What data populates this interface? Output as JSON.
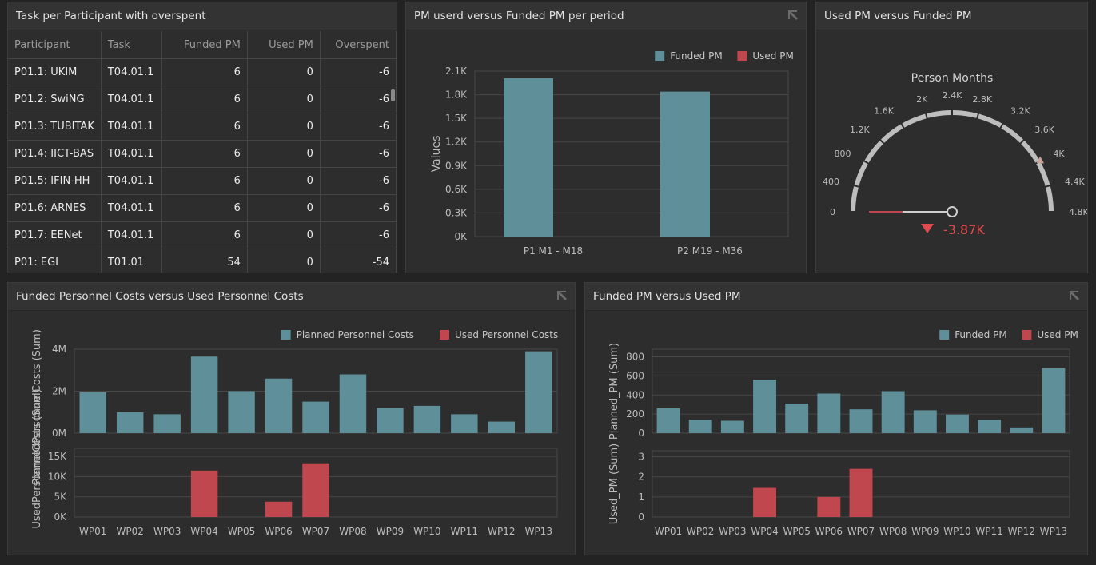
{
  "table_panel": {
    "title": "Task per Participant with overspent",
    "columns": [
      "Participant",
      "Task",
      "Funded PM",
      "Used PM",
      "Overspent"
    ],
    "rows": [
      [
        "P01.1: UKIM",
        "T04.01.1",
        "6",
        "0",
        "-6"
      ],
      [
        "P01.2: SwiNG",
        "T04.01.1",
        "6",
        "0",
        "-6"
      ],
      [
        "P01.3: TUBITAK",
        "T04.01.1",
        "6",
        "0",
        "-6"
      ],
      [
        "P01.4: IICT-BAS",
        "T04.01.1",
        "6",
        "0",
        "-6"
      ],
      [
        "P01.5: IFIN-HH",
        "T04.01.1",
        "6",
        "0",
        "-6"
      ],
      [
        "P01.6: ARNES",
        "T04.01.1",
        "6",
        "0",
        "-6"
      ],
      [
        "P01.7: EENet",
        "T04.01.1",
        "6",
        "0",
        "-6"
      ],
      [
        "P01: EGI",
        "T01.01",
        "54",
        "0",
        "-54"
      ]
    ]
  },
  "period_panel": {
    "title": "PM userd versus Funded PM per period"
  },
  "gauge_panel": {
    "title": "Used PM versus Funded PM"
  },
  "costs_panel": {
    "title": "Funded Personnel Costs versus Used Personnel Costs"
  },
  "pm_panel": {
    "title": "Funded PM versus Used PM"
  },
  "colors": {
    "funded": "#5f8f98",
    "used": "#c1474f",
    "bg": "#2d2d2d"
  },
  "chart_data": [
    {
      "id": "period",
      "type": "bar",
      "categories": [
        "P1 M1 - M18",
        "P2 M19 - M36"
      ],
      "series": [
        {
          "name": "Funded PM",
          "values": [
            2010,
            1840
          ]
        },
        {
          "name": "Used PM",
          "values": [
            0,
            0
          ]
        }
      ],
      "ylabel": "Values",
      "ylim": [
        0,
        2100
      ],
      "yticks": [
        0,
        300,
        600,
        900,
        1200,
        1500,
        1800,
        2100
      ],
      "ytick_labels": [
        "0K",
        "0.3K",
        "0.6K",
        "0.9K",
        "1.2K",
        "1.5K",
        "1.8K",
        "2.1K"
      ],
      "legend": [
        "Funded PM",
        "Used PM"
      ],
      "grid": true
    },
    {
      "id": "gauge",
      "type": "gauge",
      "title": "Person Months",
      "range": [
        0,
        4800
      ],
      "ticks": [
        0,
        400,
        800,
        1200,
        1600,
        2000,
        2400,
        2800,
        3200,
        3600,
        4000,
        4400,
        4800
      ],
      "tick_labels": [
        "0",
        "400",
        "800",
        "1.2K",
        "1.6K",
        "2K",
        "2.4K",
        "2.8K",
        "3.2K",
        "3.6K",
        "4K",
        "4.4K",
        "4.8K"
      ],
      "target": 4000,
      "value": -3870,
      "delta_label": "-3.87K"
    },
    {
      "id": "costs",
      "type": "bar",
      "categories": [
        "WP01",
        "WP02",
        "WP03",
        "WP04",
        "WP05",
        "WP06",
        "WP07",
        "WP08",
        "WP09",
        "WP10",
        "WP11",
        "WP12",
        "WP13"
      ],
      "series": [
        {
          "name": "Planned Personnel Costs",
          "values": [
            1950000,
            1000000,
            900000,
            3650000,
            2000000,
            2600000,
            1500000,
            2800000,
            1200000,
            1300000,
            900000,
            550000,
            3900000
          ],
          "ylim": [
            0,
            4000000
          ],
          "yticks": [
            0,
            2000000,
            4000000
          ],
          "ytick_labels": [
            "0M",
            "2M",
            "4M"
          ],
          "ylabel": "PlannedPersonnelCosts (Sum)"
        },
        {
          "name": "Used Personnel Costs",
          "values": [
            0,
            0,
            0,
            11500,
            0,
            3800,
            13300,
            0,
            0,
            0,
            0,
            0,
            0
          ],
          "ylim": [
            0,
            17000
          ],
          "yticks": [
            0,
            5000,
            10000,
            15000
          ],
          "ytick_labels": [
            "0K",
            "5K",
            "10K",
            "15K"
          ],
          "ylabel": "UsedPersonnelCosts (Sum)"
        }
      ],
      "legend": [
        "Planned Personnel Costs",
        "Used Personnel Costs"
      ],
      "grid": true
    },
    {
      "id": "pm",
      "type": "bar",
      "categories": [
        "WP01",
        "WP02",
        "WP03",
        "WP04",
        "WP05",
        "WP06",
        "WP07",
        "WP08",
        "WP09",
        "WP10",
        "WP11",
        "WP12",
        "WP13"
      ],
      "series": [
        {
          "name": "Funded PM",
          "values": [
            260,
            140,
            130,
            560,
            310,
            415,
            250,
            440,
            240,
            195,
            140,
            60,
            680
          ],
          "ylim": [
            0,
            880
          ],
          "yticks": [
            0,
            200,
            400,
            600,
            800
          ],
          "ytick_labels": [
            "0",
            "200",
            "400",
            "600",
            "800"
          ],
          "ylabel": "Planned_PM (Sum)"
        },
        {
          "name": "Used PM",
          "values": [
            0,
            0,
            0,
            1.45,
            0,
            1.0,
            2.4,
            0,
            0,
            0,
            0,
            0,
            0
          ],
          "ylim": [
            0,
            3.3
          ],
          "yticks": [
            0,
            1,
            2,
            3
          ],
          "ytick_labels": [
            "0",
            "1",
            "2",
            "3"
          ],
          "ylabel": "Used_PM (Sum)"
        }
      ],
      "legend": [
        "Funded PM",
        "Used PM"
      ],
      "grid": true
    }
  ]
}
